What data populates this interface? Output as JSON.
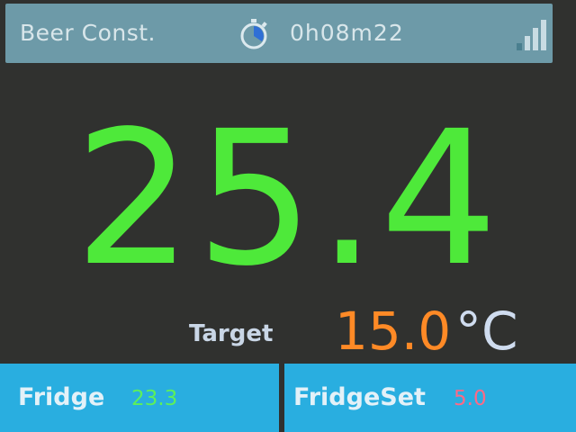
{
  "header": {
    "mode": "Beer Const.",
    "elapsed": "0h08m22",
    "stopwatch_icon": "stopwatch-icon",
    "signal_icon": "signal-strength-icon"
  },
  "main": {
    "temperature": "25.4",
    "target_label": "Target",
    "target_value": "15.0",
    "unit": "°C"
  },
  "footer": {
    "fridge_label": "Fridge",
    "fridge_value": "23.3",
    "fridgeset_label": "FridgeSet",
    "fridgeset_value": "5.0"
  },
  "colors": {
    "temperature": "#4ee93a",
    "target": "#ff8a26",
    "fridge_value": "#5df05a",
    "fridgeset_value": "#ff6a86",
    "topbar": "#6d9aa8",
    "panel": "#29aee0"
  }
}
